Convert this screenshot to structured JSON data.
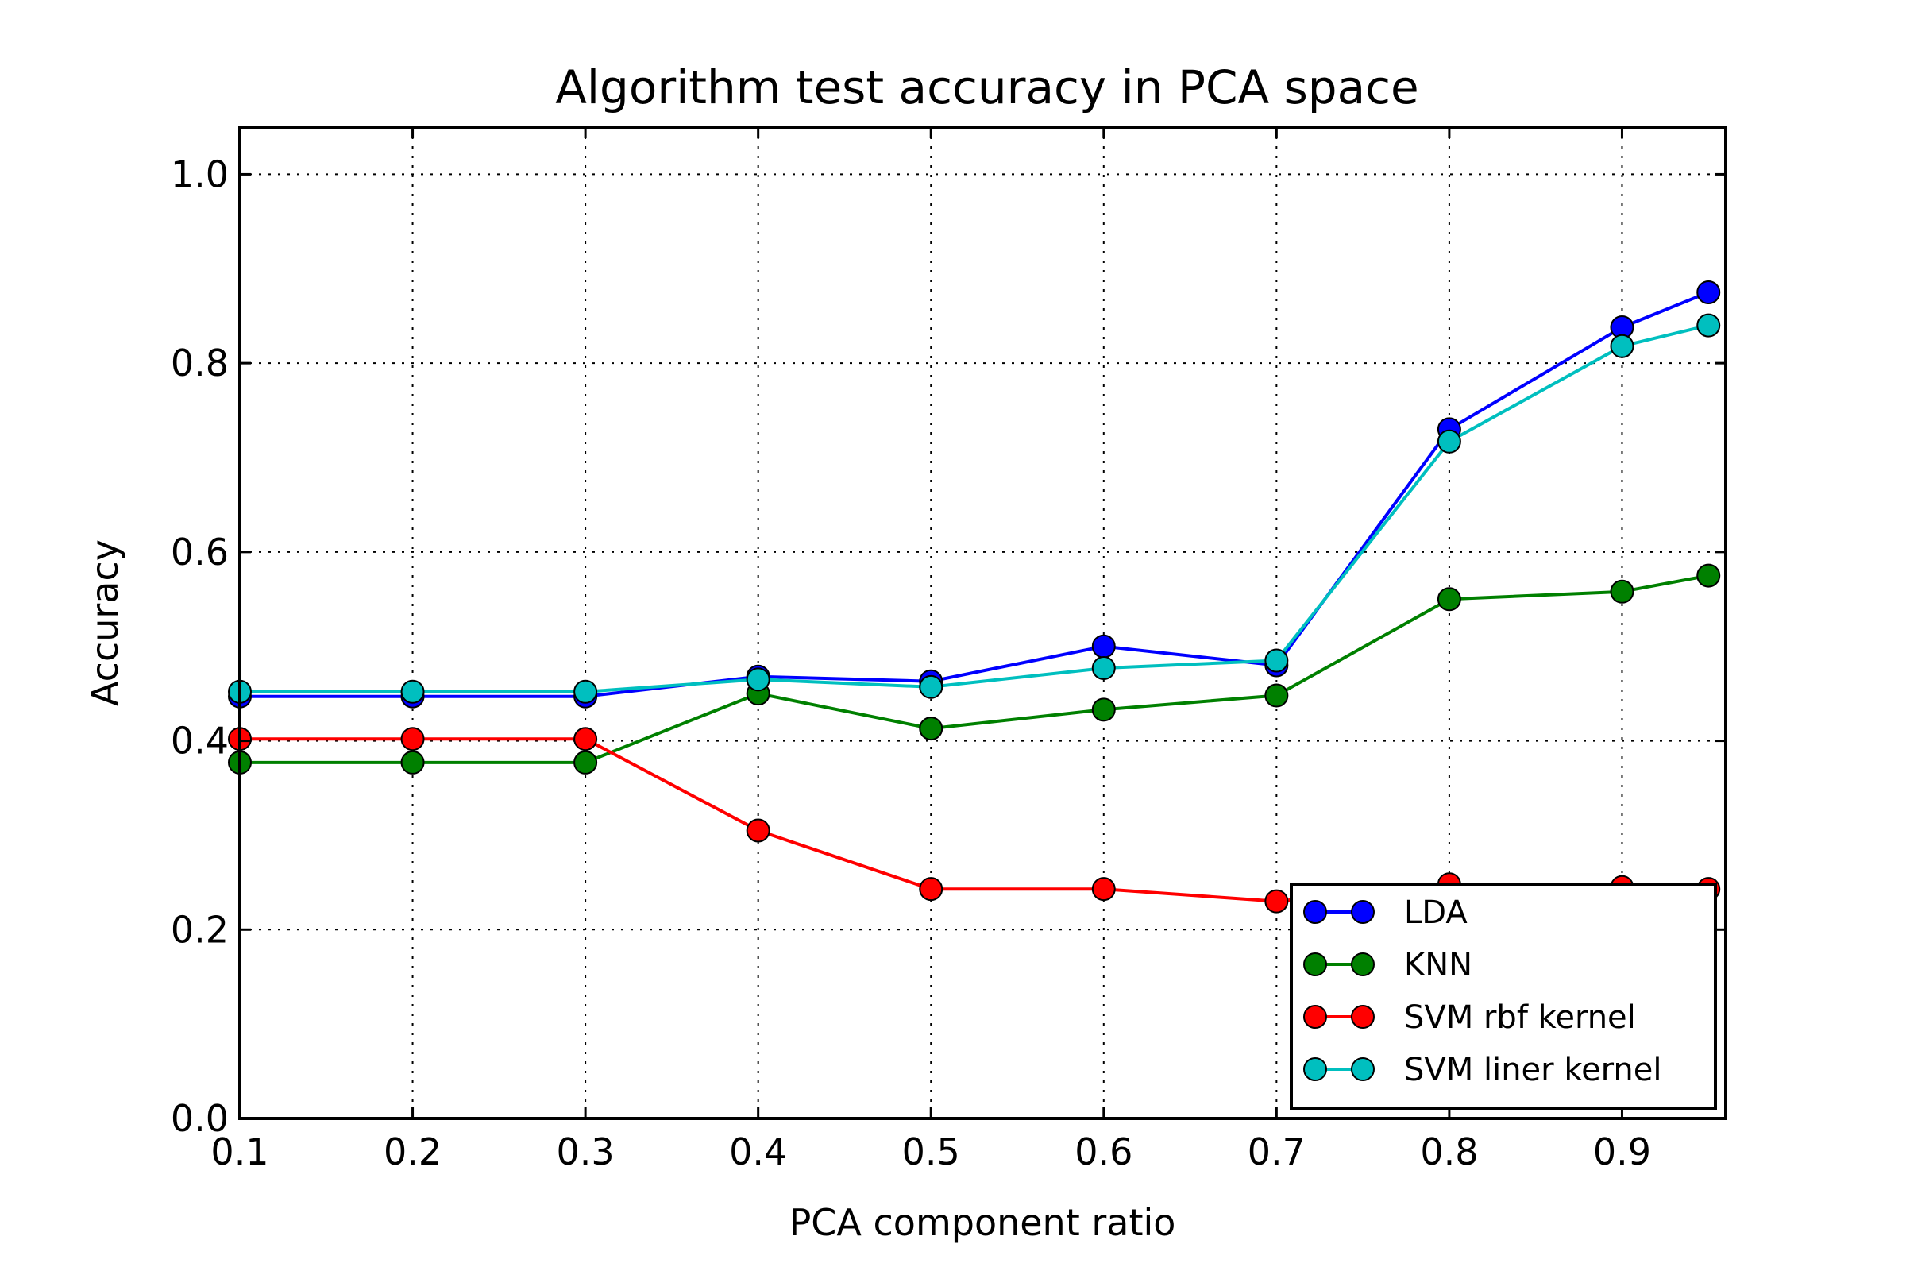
{
  "chart_data": {
    "type": "line",
    "title": "Algorithm test accuracy in PCA space",
    "xlabel": "PCA component ratio",
    "ylabel": "Accuracy",
    "xlim": [
      0.1,
      0.96
    ],
    "ylim": [
      0.0,
      1.05
    ],
    "xticks": [
      "0.1",
      "0.2",
      "0.3",
      "0.4",
      "0.5",
      "0.6",
      "0.7",
      "0.8",
      "0.9"
    ],
    "yticks": [
      "0.0",
      "0.2",
      "0.4",
      "0.6",
      "0.8",
      "1.0"
    ],
    "grid": true,
    "legend_position": "lower-right",
    "x": [
      0.1,
      0.2,
      0.3,
      0.4,
      0.5,
      0.6,
      0.7,
      0.8,
      0.9,
      0.95
    ],
    "series": [
      {
        "name": "LDA",
        "color": "#0000ff",
        "values": [
          0.447,
          0.447,
          0.447,
          0.468,
          0.463,
          0.5,
          0.48,
          0.73,
          0.838,
          0.875
        ]
      },
      {
        "name": "KNN",
        "color": "#008000",
        "values": [
          0.377,
          0.377,
          0.377,
          0.45,
          0.413,
          0.433,
          0.448,
          0.55,
          0.558,
          0.575
        ]
      },
      {
        "name": "SVM rbf kernel",
        "color": "#ff0000",
        "values": [
          0.402,
          0.402,
          0.402,
          0.305,
          0.243,
          0.243,
          0.23,
          0.248,
          0.245,
          0.243
        ]
      },
      {
        "name": "SVM liner kernel",
        "color": "#00bfbf",
        "values": [
          0.452,
          0.452,
          0.452,
          0.465,
          0.457,
          0.477,
          0.485,
          0.717,
          0.818,
          0.84
        ]
      }
    ]
  }
}
